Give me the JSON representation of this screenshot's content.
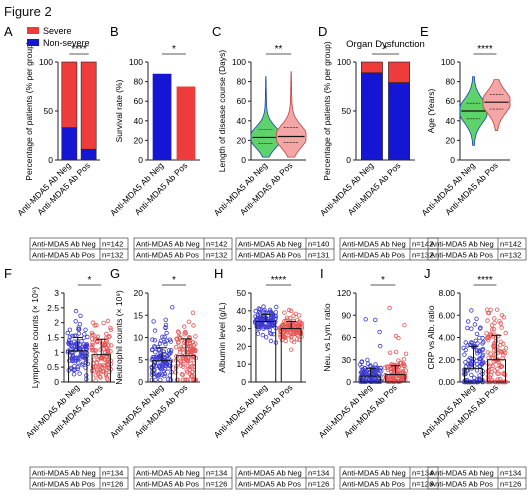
{
  "figure_title": "Figure 2",
  "colors": {
    "severe": "#ee3b3b",
    "non_severe": "#1515d4",
    "neg_violin": "#5ed36a",
    "pos_violin": "#f4a6a6",
    "neg_dots": "#3b3bd0",
    "pos_dots": "#e85555",
    "median": "#111111"
  },
  "group_labels": [
    "Anti-MDA5 Ab Neg",
    "Anti-MDA5 Ab Pos"
  ],
  "n_tables": {
    "A": [
      [
        "Anti-MDA5 Ab Neg",
        "n=142"
      ],
      [
        "Anti-MDA5 Ab Pos",
        "n=132"
      ]
    ],
    "B": [
      [
        "Anti-MDA5 Ab Neg",
        "n=142"
      ],
      [
        "Anti-MDA5 Ab Pos",
        "n=132"
      ]
    ],
    "C": [
      [
        "Anti-MDA5 Ab Neg",
        "n=140"
      ],
      [
        "Anti-MDA5 Ab Pos",
        "n=131"
      ]
    ],
    "D": [
      [
        "Anti-MDA5 Ab Neg",
        "n=142"
      ],
      [
        "Anti-MDA5 Ab Pos",
        "n=132"
      ]
    ],
    "E": [
      [
        "Anti-MDA5 Ab Neg",
        "n=142"
      ],
      [
        "Anti-MDA5 Ab Pos",
        "n=132"
      ]
    ],
    "F": [
      [
        "Anti-MDA5 Ab Neg",
        "n=134"
      ],
      [
        "Anti-MDA5 Ab Pos",
        "n=126"
      ]
    ],
    "G": [
      [
        "Anti-MDA5 Ab Neg",
        "n=134"
      ],
      [
        "Anti-MDA5 Ab Pos",
        "n=126"
      ]
    ],
    "H": [
      [
        "Anti-MDA5 Ab Neg",
        "n=134"
      ],
      [
        "Anti-MDA5 Ab Pos",
        "n=126"
      ]
    ],
    "I": [
      [
        "Anti-MDA5 Ab Neg",
        "n=134"
      ],
      [
        "Anti-MDA5 Ab Pos",
        "n=126"
      ]
    ],
    "J": [
      [
        "Anti-MDA5 Ab Neg",
        "n=134"
      ],
      [
        "Anti-MDA5 Ab Pos",
        "n=126"
      ]
    ]
  },
  "chart_data": [
    {
      "panel": "A",
      "type": "bar",
      "stacked": true,
      "categories": [
        "Anti-MDA5 Ab Neg",
        "Anti-MDA5 Ab Pos"
      ],
      "series": [
        {
          "name": "Non-severe",
          "values": [
            33,
            11
          ]
        },
        {
          "name": "Severe",
          "values": [
            67,
            89
          ]
        }
      ],
      "ylabel": "Percentage of patients (% per group)",
      "ylim": [
        0,
        100
      ],
      "yticks": [
        0,
        50,
        100
      ],
      "significance": "****",
      "legend": "top-left"
    },
    {
      "panel": "B",
      "type": "bar",
      "categories": [
        "Anti-MDA5 Ab Neg",
        "Anti-MDA5 Ab Pos"
      ],
      "values": [
        88,
        75
      ],
      "ylabel": "Survival rate (%)",
      "ylim": [
        0,
        100
      ],
      "yticks": [
        0,
        20,
        40,
        60,
        80,
        100
      ],
      "significance": "*"
    },
    {
      "panel": "C",
      "type": "violin",
      "categories": [
        "Anti-MDA5 Ab Neg",
        "Anti-MDA5 Ab Pos"
      ],
      "medians": [
        23,
        24
      ],
      "quartiles": [
        [
          17,
          31
        ],
        [
          18,
          33
        ]
      ],
      "ranges": [
        [
          3,
          85
        ],
        [
          3,
          90
        ]
      ],
      "ylabel": "Length of disease course (Days)",
      "ylim": [
        0,
        100
      ],
      "yticks": [
        0,
        20,
        40,
        60,
        80,
        100
      ],
      "significance": "**"
    },
    {
      "panel": "D",
      "type": "bar",
      "stacked": true,
      "title": "Organ Dysfunction",
      "categories": [
        "Anti-MDA5 Ab Neg",
        "Anti-MDA5 Ab Pos"
      ],
      "series": [
        {
          "name": "Non-severe",
          "values": [
            89,
            79
          ]
        },
        {
          "name": "Severe",
          "values": [
            11,
            21
          ]
        }
      ],
      "ylabel": "Percentage of patients (% per group)",
      "ylim": [
        0,
        100
      ],
      "yticks": [
        0,
        50,
        100
      ],
      "significance": "*"
    },
    {
      "panel": "E",
      "type": "violin",
      "categories": [
        "Anti-MDA5 Ab Neg",
        "Anti-MDA5 Ab Pos"
      ],
      "medians": [
        50,
        59
      ],
      "quartiles": [
        [
          42,
          58
        ],
        [
          52,
          67
        ]
      ],
      "ranges": [
        [
          15,
          85
        ],
        [
          30,
          82
        ]
      ],
      "ylabel": "Age (Years)",
      "ylim": [
        0,
        100
      ],
      "yticks": [
        0,
        20,
        40,
        60,
        80,
        100
      ],
      "significance": "****"
    },
    {
      "panel": "F",
      "type": "bar",
      "categories": [
        "Anti-MDA5 Ab Neg",
        "Anti-MDA5 Ab Pos"
      ],
      "values": [
        1.05,
        0.92
      ],
      "error": [
        0.45,
        0.52
      ],
      "ranges": [
        [
          0.1,
          2.4
        ],
        [
          0.05,
          2.7
        ]
      ],
      "ylabel": "Lymphocyte counts (× 10⁹)",
      "ylim": [
        0,
        3.0
      ],
      "yticks": [
        0.0,
        0.5,
        1.0,
        1.5,
        2.0,
        2.5,
        3.0
      ],
      "significance": "*"
    },
    {
      "panel": "G",
      "type": "bar",
      "categories": [
        "Anti-MDA5 Ab Neg",
        "Anti-MDA5 Ab Pos"
      ],
      "values": [
        4.8,
        5.9
      ],
      "error": [
        2.9,
        3.8
      ],
      "ranges": [
        [
          0.5,
          18
        ],
        [
          0.5,
          18
        ]
      ],
      "ylabel": "Neutrophil counts (× 10⁹)",
      "ylim": [
        0,
        20
      ],
      "yticks": [
        0,
        5,
        10,
        15,
        20
      ],
      "significance": "*"
    },
    {
      "panel": "H",
      "type": "bar",
      "categories": [
        "Anti-MDA5 Ab Neg",
        "Anti-MDA5 Ab Pos"
      ],
      "values": [
        34,
        30
      ],
      "error": [
        4,
        4
      ],
      "ranges": [
        [
          22,
          44
        ],
        [
          18,
          42
        ]
      ],
      "ylabel": "Albumin level (g/L)",
      "ylim": [
        0,
        50
      ],
      "yticks": [
        0,
        10,
        20,
        30,
        40,
        50
      ],
      "significance": "****"
    },
    {
      "panel": "I",
      "type": "bar",
      "categories": [
        "Anti-MDA5 Ab Neg",
        "Anti-MDA5 Ab Pos"
      ],
      "values": [
        8,
        10
      ],
      "error": [
        10,
        12
      ],
      "ranges": [
        [
          0.5,
          95
        ],
        [
          0.5,
          100
        ]
      ],
      "ylabel": "Neu. vs Lym. ratio",
      "ylim": [
        0,
        120
      ],
      "yticks": [
        0,
        30,
        60,
        90,
        120
      ],
      "significance": "*"
    },
    {
      "panel": "J",
      "type": "bar",
      "categories": [
        "Anti-MDA5 Ab Neg",
        "Anti-MDA5 Ab Pos"
      ],
      "values": [
        1.2,
        2.0
      ],
      "error": [
        2.0,
        2.2
      ],
      "ranges": [
        [
          0.0,
          7.0
        ],
        [
          0.0,
          6.5
        ]
      ],
      "ylabel": "CRP vs Alb. ratio",
      "ylim": [
        0,
        8
      ],
      "yticks": [
        "0.00",
        "2.00",
        "4.00",
        "6.00",
        "8.00"
      ],
      "significance": "****"
    }
  ]
}
